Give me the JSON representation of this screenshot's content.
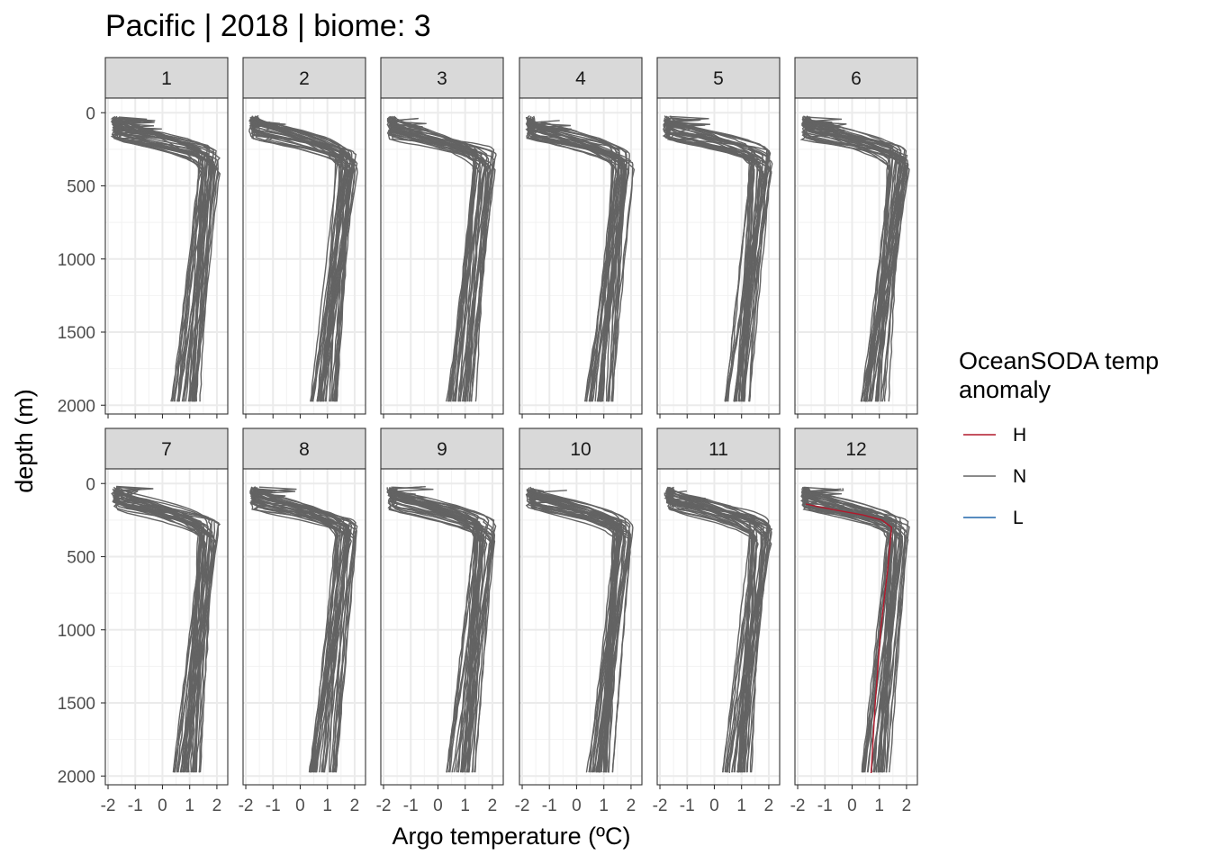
{
  "chart_data": {
    "type": "line",
    "title": "Pacific | 2018 | biome: 3",
    "xlabel": "Argo temperature (ºC)",
    "ylabel": "depth (m)",
    "xlim": [
      -2.1,
      2.4
    ],
    "ylim": [
      -100,
      2060
    ],
    "y_reversed": true,
    "x_ticks": [
      -2,
      -1,
      0,
      1,
      2
    ],
    "x_tick_labels": [
      "-2",
      "-1",
      "0",
      "1",
      "2"
    ],
    "y_ticks": [
      0,
      500,
      1000,
      1500,
      2000
    ],
    "y_tick_labels": [
      "0",
      "500",
      "1000",
      "1500",
      "2000"
    ],
    "grid": true,
    "facet_layout": {
      "rows": 2,
      "cols": 6
    },
    "panels": [
      "1",
      "2",
      "3",
      "4",
      "5",
      "6",
      "7",
      "8",
      "9",
      "10",
      "11",
      "12"
    ],
    "legend": {
      "title_lines": [
        "OceanSODA temp",
        "anomaly"
      ],
      "position": "right",
      "entries": [
        {
          "label": "H",
          "color": "#b2182b"
        },
        {
          "label": "N",
          "color": "#636363"
        },
        {
          "label": "L",
          "color": "#2166ac"
        }
      ]
    },
    "profile_shape": {
      "description": "Each panel holds many Argo temperature-vs-depth profiles: near-freezing surface (~-1.8 ºC) to ~50-200 m, sharp warming to a ~1.5-2.1 ºC maximum near 250-400 m, then slow cooling to ~0.3-1.4 ºC at 2000 m.",
      "surface_temp_range": [
        -1.8,
        -0.3
      ],
      "max_temp_range": [
        1.3,
        2.1
      ],
      "max_depth_range": [
        250,
        420
      ],
      "bottom_temp_range": [
        0.3,
        1.4
      ],
      "bottom_depth": 1975
    },
    "highlighted_profile": {
      "panel": "12",
      "anomaly": "H",
      "points": [
        [
          -1.7,
          140
        ],
        [
          -1.2,
          160
        ],
        [
          -0.5,
          185
        ],
        [
          0.4,
          215
        ],
        [
          1.1,
          250
        ],
        [
          1.45,
          300
        ],
        [
          1.4,
          400
        ],
        [
          1.3,
          600
        ],
        [
          1.05,
          1000
        ],
        [
          0.85,
          1500
        ],
        [
          0.7,
          1980
        ]
      ]
    }
  }
}
